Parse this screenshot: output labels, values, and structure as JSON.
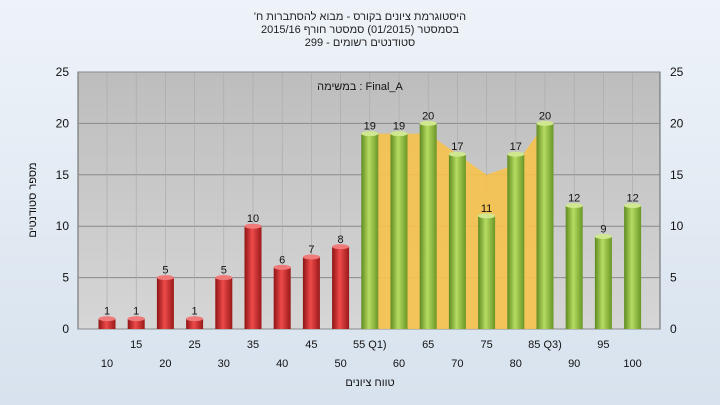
{
  "chart_data": {
    "type": "bar",
    "title_lines": [
      "'היסטוגרמת ציונים בקורס - מבוא להסתברות ח",
      "בסמסטר  (01/2015)  סמסטר חורף  2015/16",
      "סטודנטים רשומים - 299"
    ],
    "annotation": "במשימה : Final_A",
    "xlabel": "טווח ציונים",
    "ylabel": "מספר סטודנטים",
    "ylim": [
      0,
      25
    ],
    "yticks": [
      0,
      5,
      10,
      15,
      20,
      25
    ],
    "grid": true,
    "categories": [
      "10",
      "15",
      "20",
      "25",
      "30",
      "35",
      "40",
      "45",
      "50",
      "55 Q1)",
      "60",
      "65",
      "70",
      "75",
      "80",
      "85 Q3)",
      "90",
      "95",
      "100"
    ],
    "values": [
      1,
      1,
      5,
      1,
      5,
      10,
      6,
      7,
      8,
      19,
      19,
      20,
      17,
      11,
      17,
      20,
      12,
      9,
      12
    ],
    "bar_colors": [
      "red",
      "red",
      "red",
      "red",
      "red",
      "red",
      "red",
      "red",
      "red",
      "green",
      "green",
      "green",
      "green",
      "green",
      "green",
      "green",
      "green",
      "green",
      "green"
    ],
    "iqr_band": {
      "from_category": "55 Q1)",
      "to_category": "85 Q3)",
      "upper": [
        19,
        19,
        19,
        17,
        15,
        16,
        20
      ],
      "color": "#f6c24c"
    },
    "colors": {
      "red": "#d42a2a",
      "green": "#8fbf3a",
      "band": "#f6c24c",
      "plot_bg": "#b8b8b8"
    }
  }
}
